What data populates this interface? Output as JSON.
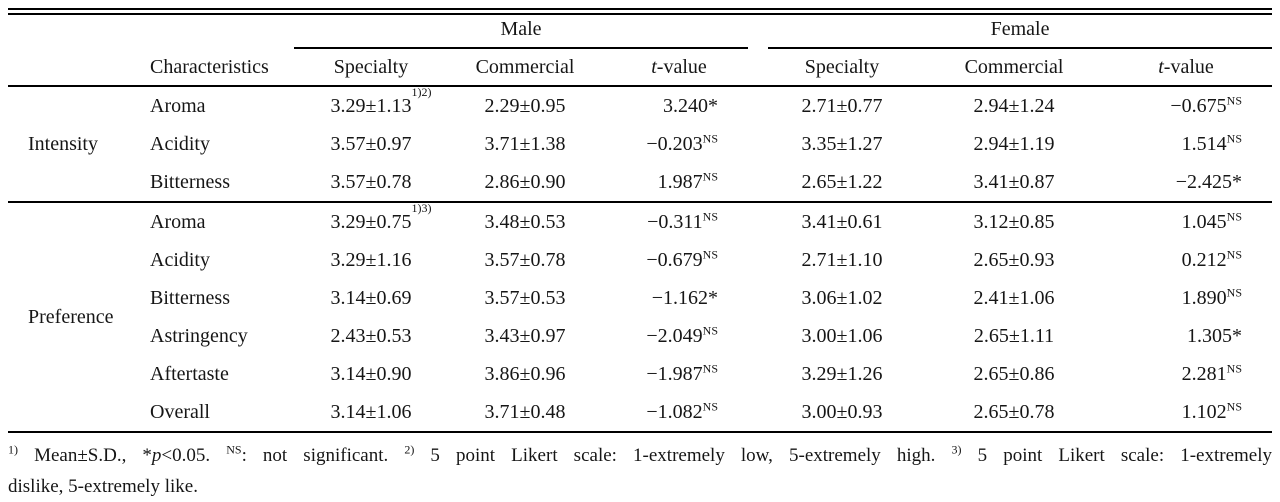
{
  "table": {
    "header": {
      "characteristics_label": "Characteristics",
      "male_label": "Male",
      "female_label": "Female",
      "specialty_label": "Specialty",
      "commercial_label": "Commercial",
      "t_label_italic": "t",
      "t_label_rest": "-value"
    },
    "sections": [
      {
        "label": "Intensity",
        "rows": [
          {
            "char": "Aroma",
            "m_sp": "3.29±1.13",
            "m_sp_sup": "1)2)",
            "m_co": "2.29±0.95",
            "m_t": "3.240",
            "m_t_mark": "*",
            "f_sp": "2.71±0.77",
            "f_sp_sup": "",
            "f_co": "2.94±1.24",
            "f_t": "−0.675",
            "f_t_mark": "NS"
          },
          {
            "char": "Acidity",
            "m_sp": "3.57±0.97",
            "m_sp_sup": "",
            "m_co": "3.71±1.38",
            "m_t": "−0.203",
            "m_t_mark": "NS",
            "f_sp": "3.35±1.27",
            "f_sp_sup": "",
            "f_co": "2.94±1.19",
            "f_t": "1.514",
            "f_t_mark": "NS"
          },
          {
            "char": "Bitterness",
            "m_sp": "3.57±0.78",
            "m_sp_sup": "",
            "m_co": "2.86±0.90",
            "m_t": "1.987",
            "m_t_mark": "NS",
            "f_sp": "2.65±1.22",
            "f_sp_sup": "",
            "f_co": "3.41±0.87",
            "f_t": "−2.425",
            "f_t_mark": "*"
          }
        ]
      },
      {
        "label": "Preference",
        "rows": [
          {
            "char": "Aroma",
            "m_sp": "3.29±0.75",
            "m_sp_sup": "1)3)",
            "m_co": "3.48±0.53",
            "m_t": "−0.311",
            "m_t_mark": "NS",
            "f_sp": "3.41±0.61",
            "f_sp_sup": "",
            "f_co": "3.12±0.85",
            "f_t": "1.045",
            "f_t_mark": "NS"
          },
          {
            "char": "Acidity",
            "m_sp": "3.29±1.16",
            "m_sp_sup": "",
            "m_co": "3.57±0.78",
            "m_t": "−0.679",
            "m_t_mark": "NS",
            "f_sp": "2.71±1.10",
            "f_sp_sup": "",
            "f_co": "2.65±0.93",
            "f_t": "0.212",
            "f_t_mark": "NS"
          },
          {
            "char": "Bitterness",
            "m_sp": "3.14±0.69",
            "m_sp_sup": "",
            "m_co": "3.57±0.53",
            "m_t": "−1.162",
            "m_t_mark": "*",
            "f_sp": "3.06±1.02",
            "f_sp_sup": "",
            "f_co": "2.41±1.06",
            "f_t": "1.890",
            "f_t_mark": "NS"
          },
          {
            "char": "Astringency",
            "m_sp": "2.43±0.53",
            "m_sp_sup": "",
            "m_co": "3.43±0.97",
            "m_t": "−2.049",
            "m_t_mark": "NS",
            "f_sp": "3.00±1.06",
            "f_sp_sup": "",
            "f_co": "2.65±1.11",
            "f_t": "1.305",
            "f_t_mark": "*"
          },
          {
            "char": "Aftertaste",
            "m_sp": "3.14±0.90",
            "m_sp_sup": "",
            "m_co": "3.86±0.96",
            "m_t": "−1.987",
            "m_t_mark": "NS",
            "f_sp": "3.29±1.26",
            "f_sp_sup": "",
            "f_co": "2.65±0.86",
            "f_t": "2.281",
            "f_t_mark": "NS"
          },
          {
            "char": "Overall",
            "m_sp": "3.14±1.06",
            "m_sp_sup": "",
            "m_co": "3.71±0.48",
            "m_t": "−1.082",
            "m_t_mark": "NS",
            "f_sp": "3.00±0.93",
            "f_sp_sup": "",
            "f_co": "2.65±0.78",
            "f_t": "1.102",
            "f_t_mark": "NS"
          }
        ]
      }
    ]
  },
  "footnote": {
    "sup1": "1)",
    "s1": " Mean±S.D., *",
    "p_italic": "p",
    "s2": "<0.05. ",
    "supNS": "NS",
    "s3": ": not significant. ",
    "sup2": "2)",
    "s4": " 5 point Likert scale: 1-extremely low, 5-extremely high. ",
    "sup3": "3)",
    "s5": " 5 point Likert scale: 1-extremely",
    "line2": "dislike, 5-extremely like."
  }
}
